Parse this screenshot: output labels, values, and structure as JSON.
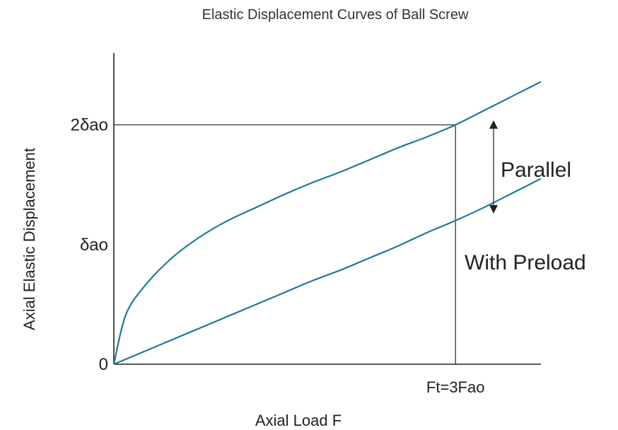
{
  "chart_data": {
    "type": "line",
    "title": "Elastic Displacement Curves of Ball Screw",
    "xlabel": "Axial Load F",
    "ylabel": "Axial Elastic Displacement",
    "yticks": [
      {
        "value": 0,
        "label": "0"
      },
      {
        "value": 1,
        "label": "δao"
      },
      {
        "value": 2,
        "label": "2δao"
      }
    ],
    "xticks": [
      {
        "value": 3,
        "label": "Ft=3Fao"
      }
    ],
    "xlim": [
      0,
      3.75
    ],
    "ylim": [
      0,
      2.6
    ],
    "grid": false,
    "series": [
      {
        "x": [
          0,
          0.1,
          0.25,
          0.5,
          0.75,
          1.0,
          1.25,
          1.5,
          1.75,
          2.0,
          2.25,
          2.5,
          2.75,
          3.0,
          3.25,
          3.5,
          3.75
        ],
        "y": [
          0,
          0.4,
          0.63,
          0.88,
          1.06,
          1.2,
          1.31,
          1.42,
          1.52,
          1.61,
          1.71,
          1.81,
          1.9,
          2.0,
          2.12,
          2.24,
          2.36
        ]
      },
      {
        "x": [
          0,
          0.25,
          0.5,
          0.75,
          1.0,
          1.25,
          1.5,
          1.75,
          2.0,
          2.25,
          2.5,
          2.75,
          3.0,
          3.25,
          3.5,
          3.75
        ],
        "y": [
          0,
          0.1,
          0.2,
          0.3,
          0.4,
          0.5,
          0.6,
          0.7,
          0.79,
          0.89,
          0.99,
          1.1,
          1.2,
          1.31,
          1.43,
          1.55
        ]
      }
    ],
    "annotations": [
      {
        "text": "Parallel"
      },
      {
        "text": "With Preload"
      }
    ],
    "colors": {
      "curve": "#1f7a9c",
      "axis": "#222222"
    }
  }
}
